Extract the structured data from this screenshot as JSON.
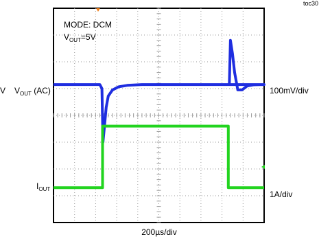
{
  "figure_id": "toc30",
  "annotations": {
    "mode": "MODE: DCM",
    "vout_prefix": "V",
    "vout_sub": "OUT",
    "vout_value": "=5V"
  },
  "left_labels": {
    "stray": "V",
    "ch1_prefix": "V",
    "ch1_sub": "OUT",
    "ch1_suffix": " (AC)",
    "ch2_prefix": "I",
    "ch2_sub": "OUT"
  },
  "right_labels": {
    "ch1_scale": "100mV/div",
    "ch2_scale": "1A/div"
  },
  "time_scale": "200µs/div",
  "colors": {
    "ch1": "#1f2ee0",
    "ch2": "#22d41f",
    "marker": "#f07f1a",
    "grid": "#9a9a9a",
    "frame": "#000000"
  },
  "chart_data": {
    "type": "line",
    "grid": {
      "x_divisions": 10,
      "y_divisions": 8,
      "minor_ticks_per_division": 5
    },
    "x_units": "divisions",
    "y_units": "divisions",
    "xlim": [
      0,
      10
    ],
    "ylim": [
      0,
      8
    ],
    "series": [
      {
        "channel": "ch1",
        "x": [
          0,
          2.2,
          2.3,
          2.35,
          2.42,
          2.5,
          2.6,
          2.8,
          3.1,
          3.5,
          4.2,
          10,
          8.35,
          8.4,
          8.5,
          8.6,
          8.75,
          8.95,
          9.2,
          9.5,
          10
        ],
        "y": [
          5.15,
          5.15,
          5.0,
          3.0,
          3.6,
          4.3,
          4.72,
          4.95,
          5.07,
          5.12,
          5.15,
          5.15,
          5.15,
          6.8,
          6.3,
          5.6,
          4.95,
          4.95,
          5.1,
          5.14,
          5.15
        ]
      },
      {
        "channel": "ch2",
        "x": [
          0,
          2.33,
          2.33,
          8.3,
          8.3,
          10
        ],
        "y": [
          1.3,
          1.3,
          3.6,
          3.6,
          1.3,
          1.3
        ]
      }
    ]
  }
}
